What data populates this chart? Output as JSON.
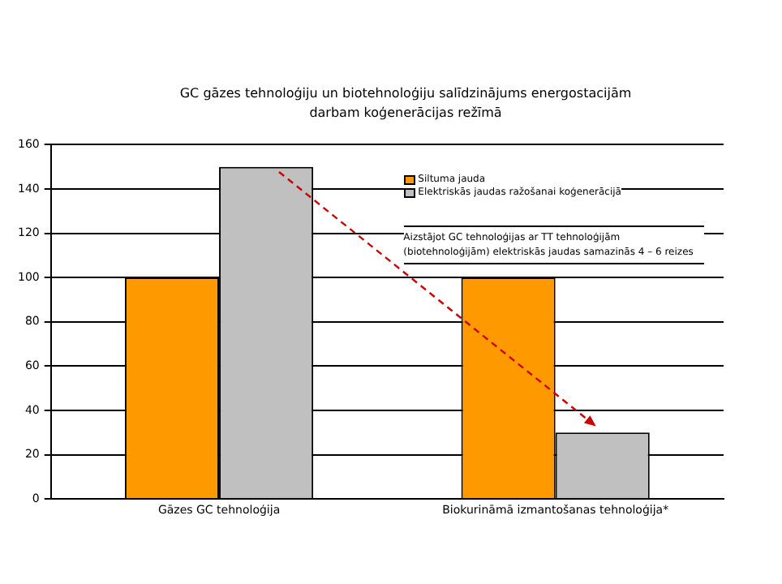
{
  "chart_data": {
    "type": "bar",
    "title": "GC gāzes tehnoloģiju un biotehnoloģiju salīdzinājums energostacijām darbam koģenerācijas režīmā",
    "categories": [
      "Gāzes GC tehnoloģija",
      "Biokurināmā izmantošanas tehnoloģija*"
    ],
    "series": [
      {
        "name": "Siltuma jauda",
        "color": "#ff9900",
        "values": [
          100,
          100
        ]
      },
      {
        "name": "Elektriskās jaudas ražošanai koģenerācijā",
        "color": "#c0c0c0",
        "values": [
          150,
          30
        ]
      }
    ],
    "ylim": [
      0,
      160
    ],
    "yticks": [
      0,
      20,
      40,
      60,
      80,
      100,
      120,
      140,
      160
    ],
    "grid": "y",
    "legend": "top right",
    "annotations": [
      "Aizstājot GC tehnoloģijas ar TT tehnoloģijām (biotehnoloģijām) elektriskās jaudas samazinās 4 – 6 reizes"
    ]
  }
}
